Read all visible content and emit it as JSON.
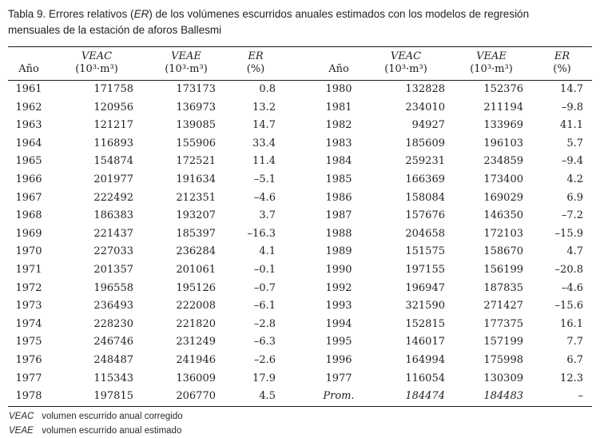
{
  "title": {
    "prefix": "Tabla 9. Errores relativos (",
    "abbr": "ER",
    "suffix": ") de los volúmenes escurridos anuales estimados con los modelos de regresión",
    "line2": "mensuales de la estación de aforos Ballesmi"
  },
  "table": {
    "headers": {
      "year_label": "Año",
      "veac_label": "VEAC",
      "veae_label": "VEAE",
      "er_label": "ER",
      "volume_unit": "(10³·m³)",
      "er_unit": "(%)"
    },
    "rows_left": [
      {
        "year": "1961",
        "veac": "171758",
        "veae": "173173",
        "er": "0.8"
      },
      {
        "year": "1962",
        "veac": "120956",
        "veae": "136973",
        "er": "13.2"
      },
      {
        "year": "1963",
        "veac": "121217",
        "veae": "139085",
        "er": "14.7"
      },
      {
        "year": "1964",
        "veac": "116893",
        "veae": "155906",
        "er": "33.4"
      },
      {
        "year": "1965",
        "veac": "154874",
        "veae": "172521",
        "er": "11.4"
      },
      {
        "year": "1966",
        "veac": "201977",
        "veae": "191634",
        "er": "–5.1"
      },
      {
        "year": "1967",
        "veac": "222492",
        "veae": "212351",
        "er": "–4.6"
      },
      {
        "year": "1968",
        "veac": "186383",
        "veae": "193207",
        "er": "3.7"
      },
      {
        "year": "1969",
        "veac": "221437",
        "veae": "185397",
        "er": "–16.3"
      },
      {
        "year": "1970",
        "veac": "227033",
        "veae": "236284",
        "er": "4.1"
      },
      {
        "year": "1971",
        "veac": "201357",
        "veae": "201061",
        "er": "–0.1"
      },
      {
        "year": "1972",
        "veac": "196558",
        "veae": "195126",
        "er": "–0.7"
      },
      {
        "year": "1973",
        "veac": "236493",
        "veae": "222008",
        "er": "–6.1"
      },
      {
        "year": "1974",
        "veac": "228230",
        "veae": "221820",
        "er": "–2.8"
      },
      {
        "year": "1975",
        "veac": "246746",
        "veae": "231249",
        "er": "–6.3"
      },
      {
        "year": "1976",
        "veac": "248487",
        "veae": "241946",
        "er": "–2.6"
      },
      {
        "year": "1977",
        "veac": "115343",
        "veae": "136009",
        "er": "17.9"
      },
      {
        "year": "1978",
        "veac": "197815",
        "veae": "206770",
        "er": "4.5"
      }
    ],
    "rows_right": [
      {
        "year": "1980",
        "veac": "132828",
        "veae": "152376",
        "er": "14.7"
      },
      {
        "year": "1981",
        "veac": "234010",
        "veae": "211194",
        "er": "–9.8"
      },
      {
        "year": "1982",
        "veac": "94927",
        "veae": "133969",
        "er": "41.1"
      },
      {
        "year": "1983",
        "veac": "185609",
        "veae": "196103",
        "er": "5.7"
      },
      {
        "year": "1984",
        "veac": "259231",
        "veae": "234859",
        "er": "–9.4"
      },
      {
        "year": "1985",
        "veac": "166369",
        "veae": "173400",
        "er": "4.2"
      },
      {
        "year": "1986",
        "veac": "158084",
        "veae": "169029",
        "er": "6.9"
      },
      {
        "year": "1987",
        "veac": "157676",
        "veae": "146350",
        "er": "–7.2"
      },
      {
        "year": "1988",
        "veac": "204658",
        "veae": "172103",
        "er": "–15.9"
      },
      {
        "year": "1989",
        "veac": "151575",
        "veae": "158670",
        "er": "4.7"
      },
      {
        "year": "1990",
        "veac": "197155",
        "veae": "156199",
        "er": "–20.8"
      },
      {
        "year": "1992",
        "veac": "196947",
        "veae": "187835",
        "er": "–4.6"
      },
      {
        "year": "1993",
        "veac": "321590",
        "veae": "271427",
        "er": "–15.6"
      },
      {
        "year": "1994",
        "veac": "152815",
        "veae": "177375",
        "er": "16.1"
      },
      {
        "year": "1995",
        "veac": "146017",
        "veae": "157199",
        "er": "7.7"
      },
      {
        "year": "1996",
        "veac": "164994",
        "veae": "175998",
        "er": "6.7"
      },
      {
        "year": "1977",
        "veac": "116054",
        "veae": "130309",
        "er": "12.3"
      },
      {
        "year": "Prom.",
        "veac": "184474",
        "veae": "184483",
        "er": "–",
        "italic": true
      }
    ]
  },
  "footnotes": [
    {
      "abbr": "VEAC",
      "text": "volumen escurrido anual corregido"
    },
    {
      "abbr": "VEAE",
      "text": "volumen escurrido anual estimado"
    }
  ],
  "colors": {
    "text": "#1f1f1f",
    "rule": "#1c1c1c",
    "background": "#ffffff"
  }
}
